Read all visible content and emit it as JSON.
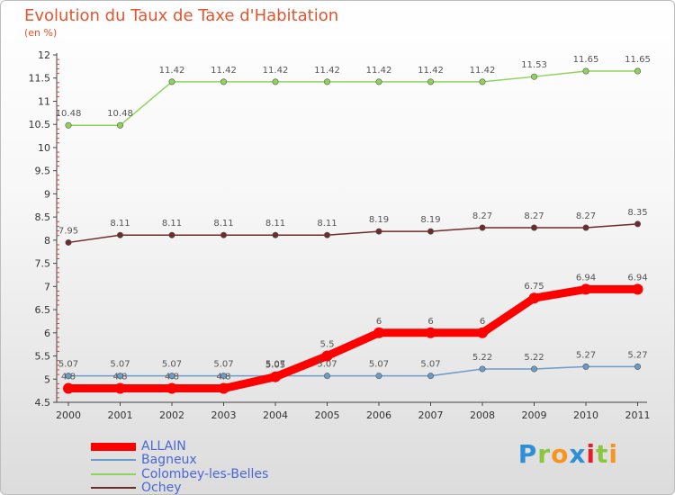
{
  "chart_data": {
    "type": "line",
    "title": "Evolution du Taux de Taxe d'Habitation",
    "subtitle": "(en %)",
    "x": [
      "2000",
      "2001",
      "2002",
      "2003",
      "2004",
      "2005",
      "2006",
      "2007",
      "2008",
      "2009",
      "2010",
      "2011"
    ],
    "y_ticks": [
      "4.5",
      "5",
      "5.5",
      "6",
      "6.5",
      "7",
      "7.5",
      "8",
      "8.5",
      "9",
      "9.5",
      "10",
      "10.5",
      "11",
      "11.5",
      "12"
    ],
    "ylim": [
      4.5,
      12
    ],
    "grid": false,
    "legend_position": "bottom-left",
    "series": [
      {
        "name": "ALLAIN",
        "color": "#ff0000",
        "values": [
          4.8,
          4.8,
          4.8,
          4.8,
          5.05,
          5.5,
          6,
          6,
          6,
          6.75,
          6.94,
          6.94
        ],
        "labels": [
          "4.8",
          "4.8",
          "4.8",
          "4.8",
          "5.05",
          "5.5",
          "6",
          "6",
          "6",
          "6.75",
          "6.94",
          "6.94"
        ]
      },
      {
        "name": "Bagneux",
        "color": "#6b9bc8",
        "values": [
          5.07,
          5.07,
          5.07,
          5.07,
          5.07,
          5.07,
          5.07,
          5.07,
          5.22,
          5.22,
          5.27,
          5.27
        ],
        "labels": [
          "5.07",
          "5.07",
          "5.07",
          "5.07",
          "5.07",
          "5.07",
          "5.07",
          "5.07",
          "5.22",
          "5.22",
          "5.27",
          "5.27"
        ]
      },
      {
        "name": "Colombey-les-Belles",
        "color": "#8fd45a",
        "values": [
          10.48,
          10.48,
          11.42,
          11.42,
          11.42,
          11.42,
          11.42,
          11.42,
          11.42,
          11.53,
          11.65,
          11.65
        ],
        "labels": [
          "10.48",
          "10.48",
          "11.42",
          "11.42",
          "11.42",
          "11.42",
          "11.42",
          "11.42",
          "11.42",
          "11.53",
          "11.65",
          "11.65"
        ]
      },
      {
        "name": "Ochey",
        "color": "#6e2b2b",
        "values": [
          7.95,
          8.11,
          8.11,
          8.11,
          8.11,
          8.11,
          8.19,
          8.19,
          8.27,
          8.27,
          8.27,
          8.35
        ],
        "labels": [
          "7.95",
          "8.11",
          "8.11",
          "8.11",
          "8.11",
          "8.11",
          "8.19",
          "8.19",
          "8.27",
          "8.27",
          "8.27",
          "8.35"
        ]
      }
    ]
  },
  "logo": {
    "chars": [
      "P",
      "r",
      "o",
      "x",
      "i",
      "t",
      "i"
    ],
    "colors": [
      "#2e8fd6",
      "#8cc63f",
      "#f7941d",
      "#2e8fd6",
      "#ec1c24",
      "#8cc63f",
      "#f7941d"
    ]
  }
}
